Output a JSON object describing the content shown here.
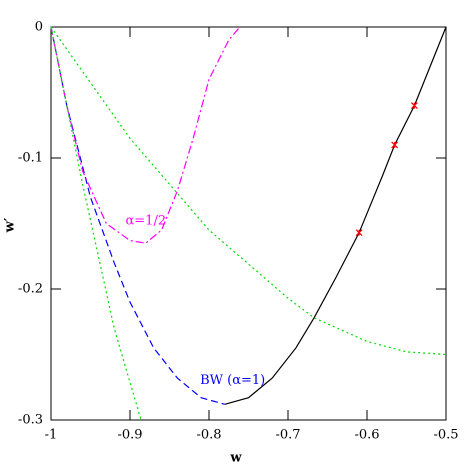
{
  "chart_data": {
    "type": "line",
    "xlabel": "w",
    "ylabel": "w′",
    "xlim": [
      -1,
      -0.5
    ],
    "ylim": [
      -0.3,
      0
    ],
    "xticks": [
      -1,
      -0.9,
      -0.8,
      -0.7,
      -0.6,
      -0.5
    ],
    "yticks": [
      -0.3,
      -0.2,
      -0.1,
      0
    ],
    "series": [
      {
        "color": "#000000",
        "style": "solid",
        "x": [
          -0.78,
          -0.75,
          -0.72,
          -0.69,
          -0.667,
          -0.64,
          -0.61,
          -0.58,
          -0.565,
          -0.54,
          -0.5
        ],
        "values": [
          -0.288,
          -0.283,
          -0.268,
          -0.245,
          -0.222,
          -0.192,
          -0.157,
          -0.113,
          -0.09,
          -0.06,
          0
        ]
      },
      {
        "color": "#0000ff",
        "style": "dashed",
        "x": [
          -1,
          -0.98,
          -0.95,
          -0.92,
          -0.9,
          -0.87,
          -0.84,
          -0.81,
          -0.78
        ],
        "values": [
          0,
          -0.06,
          -0.13,
          -0.18,
          -0.21,
          -0.245,
          -0.268,
          -0.283,
          -0.288
        ]
      },
      {
        "color": "#ff00ff",
        "style": "dashdot",
        "x": [
          -1,
          -0.98,
          -0.96,
          -0.93,
          -0.9,
          -0.88,
          -0.86,
          -0.84,
          -0.82,
          -0.8,
          -0.775,
          -0.761
        ],
        "values": [
          0,
          -0.06,
          -0.11,
          -0.15,
          -0.163,
          -0.165,
          -0.155,
          -0.125,
          -0.085,
          -0.04,
          -0.01,
          0
        ]
      },
      {
        "color": "#00dd00",
        "style": "dotted",
        "x": [
          -1,
          -0.96,
          -0.92,
          -0.886
        ],
        "values": [
          0,
          -0.12,
          -0.23,
          -0.3
        ]
      },
      {
        "color": "#00dd00",
        "style": "dotted",
        "x": [
          -1,
          -0.9,
          -0.8,
          -0.7,
          -0.667,
          -0.6,
          -0.55,
          -0.5
        ],
        "values": [
          0,
          -0.085,
          -0.155,
          -0.207,
          -0.222,
          -0.24,
          -0.248,
          -0.25
        ]
      },
      {
        "color": "#ff0000",
        "style": "none",
        "marker": "star",
        "x": [
          -0.61,
          -0.565,
          -0.54
        ],
        "values": [
          -0.157,
          -0.09,
          -0.06
        ]
      }
    ],
    "annotations": [
      {
        "text": "α=1/2",
        "x": -0.88,
        "y": -0.148,
        "color": "#ff00ff"
      },
      {
        "text": "BW (α=1)",
        "x": -0.77,
        "y": -0.27,
        "color": "#0000ff"
      }
    ]
  }
}
